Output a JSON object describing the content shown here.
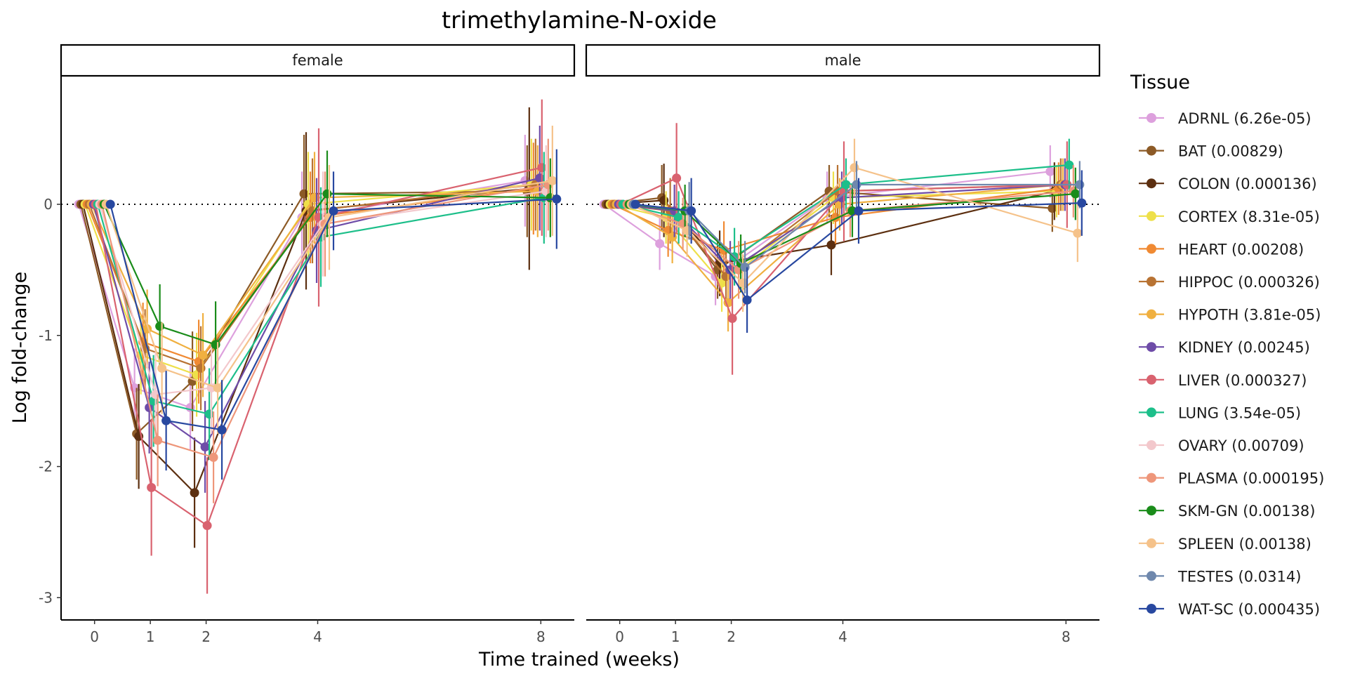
{
  "chart_data": {
    "type": "line",
    "title": "trimethylamine-N-oxide",
    "xlabel": "Time trained (weeks)",
    "ylabel": "Log fold-change",
    "x_ticks": [
      0,
      1,
      2,
      4,
      8
    ],
    "x_tick_labels": [
      "0",
      "1",
      "2",
      "4",
      "8"
    ],
    "y_ticks": [
      0,
      -1,
      -2,
      -3
    ],
    "y_tick_labels": [
      "0",
      "-1",
      "-2",
      "-3"
    ],
    "xlim": [
      -0.6,
      8.6
    ],
    "ylim": [
      -3.17,
      0.98
    ],
    "reference_line_y": 0,
    "legend_title": "Tissue",
    "legend_position": "right",
    "grid": false,
    "panels": [
      {
        "label": "female",
        "sex": "female"
      },
      {
        "label": "male",
        "sex": "male"
      }
    ],
    "series": [
      {
        "name": "ADRNL",
        "legend_label": "ADRNL (6.26e-05)",
        "color": "#DDA0DD",
        "female": {
          "x": [
            0,
            1,
            2,
            4,
            8
          ],
          "y": [
            0,
            -1.4,
            -1.55,
            -0.1,
            0.18
          ],
          "err": [
            0,
            0.3,
            0.32,
            0.35,
            0.35
          ]
        },
        "male": {
          "x": [
            0,
            1,
            2,
            4,
            8
          ],
          "y": [
            0,
            -0.3,
            -0.55,
            0.05,
            0.25
          ],
          "err": [
            0,
            0.2,
            0.22,
            0.2,
            0.2
          ]
        }
      },
      {
        "name": "BAT",
        "legend_label": "BAT (0.00829)",
        "color": "#8C5A26",
        "female": {
          "x": [
            0,
            1,
            2,
            4,
            8
          ],
          "y": [
            0,
            -1.75,
            -1.35,
            0.08,
            0.1
          ],
          "err": [
            0,
            0.35,
            0.38,
            0.45,
            0.35
          ]
        },
        "male": {
          "x": [
            0,
            1,
            2,
            4,
            8
          ],
          "y": [
            0,
            0.05,
            -0.5,
            0.1,
            -0.03
          ],
          "err": [
            0,
            0.25,
            0.22,
            0.2,
            0.18
          ]
        }
      },
      {
        "name": "COLON",
        "legend_label": "COLON (0.000136)",
        "color": "#5C2F10",
        "female": {
          "x": [
            0,
            1,
            2,
            4,
            8
          ],
          "y": [
            0,
            -1.77,
            -2.2,
            -0.05,
            0.12
          ],
          "err": [
            0,
            0.4,
            0.42,
            0.6,
            0.62
          ]
        },
        "male": {
          "x": [
            0,
            1,
            2,
            4,
            8
          ],
          "y": [
            0,
            0.03,
            -0.45,
            -0.31,
            0.1
          ],
          "err": [
            0,
            0.28,
            0.25,
            0.23,
            0.22
          ]
        }
      },
      {
        "name": "CORTEX",
        "legend_label": "CORTEX (8.31e-05)",
        "color": "#EEE04A",
        "female": {
          "x": [
            0,
            1,
            2,
            4,
            8
          ],
          "y": [
            0,
            -1.15,
            -1.3,
            0.0,
            0.15
          ],
          "err": [
            0,
            0.3,
            0.32,
            0.4,
            0.35
          ]
        },
        "male": {
          "x": [
            0,
            1,
            2,
            4,
            8
          ],
          "y": [
            0,
            -0.1,
            -0.6,
            0.05,
            0.1
          ],
          "err": [
            0,
            0.2,
            0.22,
            0.2,
            0.2
          ]
        }
      },
      {
        "name": "HEART",
        "legend_label": "HEART (0.00208)",
        "color": "#F08A33",
        "female": {
          "x": [
            0,
            1,
            2,
            4,
            8
          ],
          "y": [
            0,
            -1.05,
            -1.2,
            -0.1,
            0.12
          ],
          "err": [
            0,
            0.3,
            0.32,
            0.35,
            0.35
          ]
        },
        "male": {
          "x": [
            0,
            1,
            2,
            4,
            8
          ],
          "y": [
            0,
            -0.2,
            -0.35,
            -0.1,
            0.12
          ],
          "err": [
            0,
            0.2,
            0.22,
            0.2,
            0.2
          ]
        }
      },
      {
        "name": "HIPPOC",
        "legend_label": "HIPPOC (0.000326)",
        "color": "#B87333",
        "female": {
          "x": [
            0,
            1,
            2,
            4,
            8
          ],
          "y": [
            0,
            -1.1,
            -1.25,
            -0.05,
            0.15
          ],
          "err": [
            0,
            0.3,
            0.32,
            0.4,
            0.35
          ]
        },
        "male": {
          "x": [
            0,
            1,
            2,
            4,
            8
          ],
          "y": [
            0,
            -0.05,
            -0.55,
            0.1,
            0.15
          ],
          "err": [
            0,
            0.25,
            0.22,
            0.2,
            0.2
          ]
        }
      },
      {
        "name": "HYPOTH",
        "legend_label": "HYPOTH (3.81e-05)",
        "color": "#F0B040",
        "female": {
          "x": [
            0,
            1,
            2,
            4,
            8
          ],
          "y": [
            0,
            -0.95,
            -1.15,
            0.05,
            0.1
          ],
          "err": [
            0,
            0.3,
            0.32,
            0.35,
            0.35
          ]
        },
        "male": {
          "x": [
            0,
            1,
            2,
            4,
            8
          ],
          "y": [
            0,
            -0.25,
            -0.75,
            0.0,
            0.15
          ],
          "err": [
            0,
            0.2,
            0.22,
            0.2,
            0.2
          ]
        }
      },
      {
        "name": "KIDNEY",
        "legend_label": "KIDNEY (0.00245)",
        "color": "#6E4CA8",
        "female": {
          "x": [
            0,
            1,
            2,
            4,
            8
          ],
          "y": [
            0,
            -1.55,
            -1.85,
            -0.2,
            0.2
          ],
          "err": [
            0,
            0.35,
            0.35,
            0.4,
            0.4
          ]
        },
        "male": {
          "x": [
            0,
            1,
            2,
            4,
            8
          ],
          "y": [
            0,
            -0.05,
            -0.5,
            0.05,
            0.15
          ],
          "err": [
            0,
            0.2,
            0.22,
            0.2,
            0.2
          ]
        }
      },
      {
        "name": "LIVER",
        "legend_label": "LIVER (0.000327)",
        "color": "#D9626F",
        "female": {
          "x": [
            0,
            1,
            2,
            4,
            8
          ],
          "y": [
            0,
            -2.16,
            -2.45,
            -0.1,
            0.28
          ],
          "err": [
            0,
            0.52,
            0.52,
            0.68,
            0.52
          ]
        },
        "male": {
          "x": [
            0,
            1,
            2,
            4,
            8
          ],
          "y": [
            0,
            0.2,
            -0.87,
            0.1,
            0.15
          ],
          "err": [
            0,
            0.42,
            0.43,
            0.38,
            0.33
          ]
        }
      },
      {
        "name": "LUNG",
        "legend_label": "LUNG (3.54e-05)",
        "color": "#1DBF8A",
        "female": {
          "x": [
            0,
            1,
            2,
            4,
            8
          ],
          "y": [
            0,
            -1.5,
            -1.6,
            -0.25,
            0.05
          ],
          "err": [
            0,
            0.35,
            0.35,
            0.38,
            0.35
          ]
        },
        "male": {
          "x": [
            0,
            1,
            2,
            4,
            8
          ],
          "y": [
            0,
            -0.1,
            -0.4,
            0.15,
            0.3
          ],
          "err": [
            0,
            0.2,
            0.22,
            0.2,
            0.2
          ]
        }
      },
      {
        "name": "OVARY",
        "legend_label": "OVARY (0.00709)",
        "color": "#F3C8CC",
        "female": {
          "x": [
            0,
            1,
            2,
            4,
            8
          ],
          "y": [
            0,
            -1.45,
            -1.4,
            -0.15,
            0.1
          ],
          "err": [
            0,
            0.35,
            0.35,
            0.4,
            0.35
          ]
        },
        "male": null
      },
      {
        "name": "PLASMA",
        "legend_label": "PLASMA (0.000195)",
        "color": "#EE967A",
        "female": {
          "x": [
            0,
            1,
            2,
            4,
            8
          ],
          "y": [
            0,
            -1.8,
            -1.93,
            -0.15,
            0.15
          ],
          "err": [
            0,
            0.35,
            0.35,
            0.4,
            0.35
          ]
        },
        "male": {
          "x": [
            0,
            1,
            2,
            4,
            8
          ],
          "y": [
            0,
            -0.15,
            -0.5,
            -0.05,
            0.1
          ],
          "err": [
            0,
            0.2,
            0.22,
            0.2,
            0.2
          ]
        }
      },
      {
        "name": "SKM-GN",
        "legend_label": "SKM-GN (0.00138)",
        "color": "#1A8C1A",
        "female": {
          "x": [
            0,
            1,
            2,
            4,
            8
          ],
          "y": [
            0,
            -0.93,
            -1.07,
            0.08,
            0.05
          ],
          "err": [
            0,
            0.32,
            0.33,
            0.33,
            0.3
          ]
        },
        "male": {
          "x": [
            0,
            1,
            2,
            4,
            8
          ],
          "y": [
            0,
            -0.05,
            -0.45,
            -0.05,
            0.08
          ],
          "err": [
            0,
            0.2,
            0.22,
            0.2,
            0.2
          ]
        }
      },
      {
        "name": "SPLEEN",
        "legend_label": "SPLEEN (0.00138)",
        "color": "#F5C28A",
        "female": {
          "x": [
            0,
            1,
            2,
            4,
            8
          ],
          "y": [
            0,
            -1.25,
            -1.4,
            -0.1,
            0.18
          ],
          "err": [
            0,
            0.35,
            0.35,
            0.4,
            0.42
          ]
        },
        "male": {
          "x": [
            0,
            1,
            2,
            4,
            8
          ],
          "y": [
            0,
            -0.2,
            -0.6,
            0.28,
            -0.22
          ],
          "err": [
            0,
            0.2,
            0.22,
            0.22,
            0.22
          ]
        }
      },
      {
        "name": "TESTES",
        "legend_label": "TESTES (0.0314)",
        "color": "#6F88AD",
        "female": null,
        "male": {
          "x": [
            0,
            1,
            2,
            4,
            8
          ],
          "y": [
            0,
            -0.05,
            -0.48,
            0.15,
            0.15
          ],
          "err": [
            0,
            0.22,
            0.2,
            0.18,
            0.18
          ]
        }
      },
      {
        "name": "WAT-SC",
        "legend_label": "WAT-SC (0.000435)",
        "color": "#2848A0",
        "female": {
          "x": [
            0,
            1,
            2,
            4,
            8
          ],
          "y": [
            0,
            -1.65,
            -1.72,
            -0.05,
            0.04
          ],
          "err": [
            0,
            0.38,
            0.38,
            0.3,
            0.38
          ]
        },
        "male": {
          "x": [
            0,
            1,
            2,
            4,
            8
          ],
          "y": [
            0,
            -0.05,
            -0.73,
            -0.05,
            0.01
          ],
          "err": [
            0,
            0.25,
            0.25,
            0.25,
            0.25
          ]
        }
      }
    ]
  }
}
